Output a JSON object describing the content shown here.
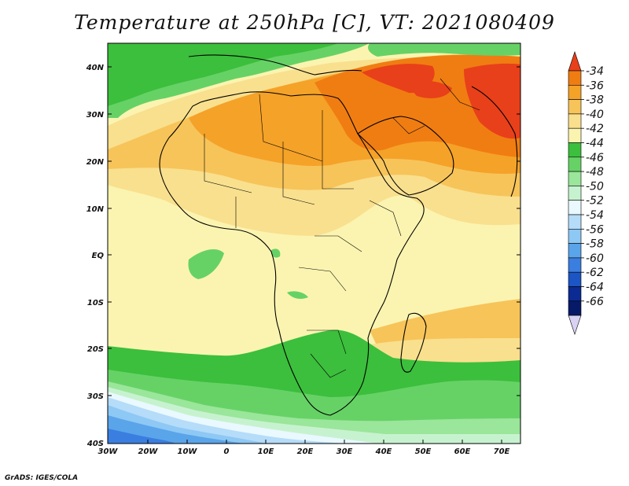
{
  "title": "Temperature at 250hPa [C], VT: 2021080409",
  "credit": "GrADS: IGES/COLA",
  "lat_labels": [
    "40N",
    "30N",
    "20N",
    "10N",
    "EQ",
    "10S",
    "20S",
    "30S",
    "40S"
  ],
  "lon_labels": [
    "30W",
    "20W",
    "10W",
    "0",
    "10E",
    "20E",
    "30E",
    "40E",
    "50E",
    "60E",
    "70E"
  ],
  "colorbar": {
    "labels": [
      "-34",
      "-36",
      "-38",
      "-40",
      "-42",
      "-44",
      "-46",
      "-48",
      "-50",
      "-52",
      "-54",
      "-56",
      "-58",
      "-60",
      "-62",
      "-64",
      "-66"
    ],
    "colors": [
      "#e8401a",
      "#f07d12",
      "#f5a228",
      "#f7c45a",
      "#f9e08e",
      "#fbf4b0",
      "#3cbf3c",
      "#66d266",
      "#9ae69a",
      "#c7f2cf",
      "#e9f9ff",
      "#b5dcf9",
      "#8ec8f4",
      "#5aa4ea",
      "#3a7ee0",
      "#1c55c4",
      "#0b2a92",
      "#071a68",
      "#d9d2f2"
    ]
  }
}
